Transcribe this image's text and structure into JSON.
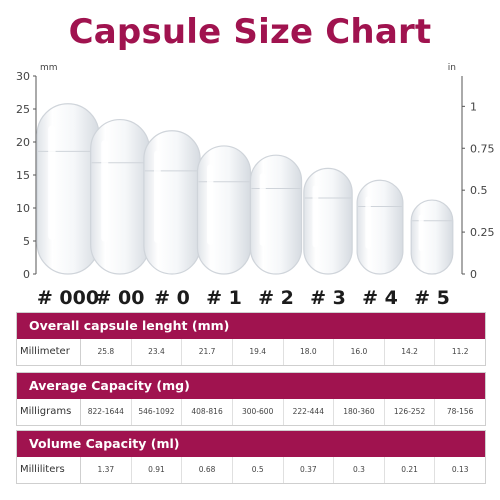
{
  "title": "Capsule Size Chart",
  "chart_data": {
    "type": "bar",
    "categories": [
      "# 000",
      "# 00",
      "# 0",
      "# 1",
      "# 2",
      "# 3",
      "# 4",
      "# 5"
    ],
    "values": [
      25.8,
      23.4,
      21.7,
      19.4,
      18.0,
      16.0,
      14.2,
      11.2
    ],
    "left_axis": {
      "unit": "mm",
      "ticks": [
        "0",
        "5",
        "10",
        "15",
        "20",
        "25",
        "30"
      ],
      "range": [
        0,
        30
      ]
    },
    "right_axis": {
      "unit": "in",
      "ticks": [
        "0",
        "0.25",
        "0.5",
        "0.75",
        "1"
      ],
      "range": [
        0,
        1.181
      ]
    },
    "grid": false
  },
  "tables": [
    {
      "header": "Overall capsule lenght (mm)",
      "row_label": "Millimeter",
      "cells": [
        "25.8",
        "23.4",
        "21.7",
        "19.4",
        "18.0",
        "16.0",
        "14.2",
        "11.2"
      ]
    },
    {
      "header": "Average Capacity (mg)",
      "row_label": "Milligrams",
      "cells": [
        "822-1644",
        "546-1092",
        "408-816",
        "300-600",
        "222-444",
        "180-360",
        "126-252",
        "78-156"
      ]
    },
    {
      "header": "Volume Capacity (ml)",
      "row_label": "Milliliters",
      "cells": [
        "1.37",
        "0.91",
        "0.68",
        "0.5",
        "0.37",
        "0.3",
        "0.21",
        "0.13"
      ]
    }
  ],
  "colors": {
    "accent": "#a0134f",
    "axis": "#555555",
    "capsule_fill": "#f4f6f8",
    "capsule_stroke": "#cfd4da"
  }
}
